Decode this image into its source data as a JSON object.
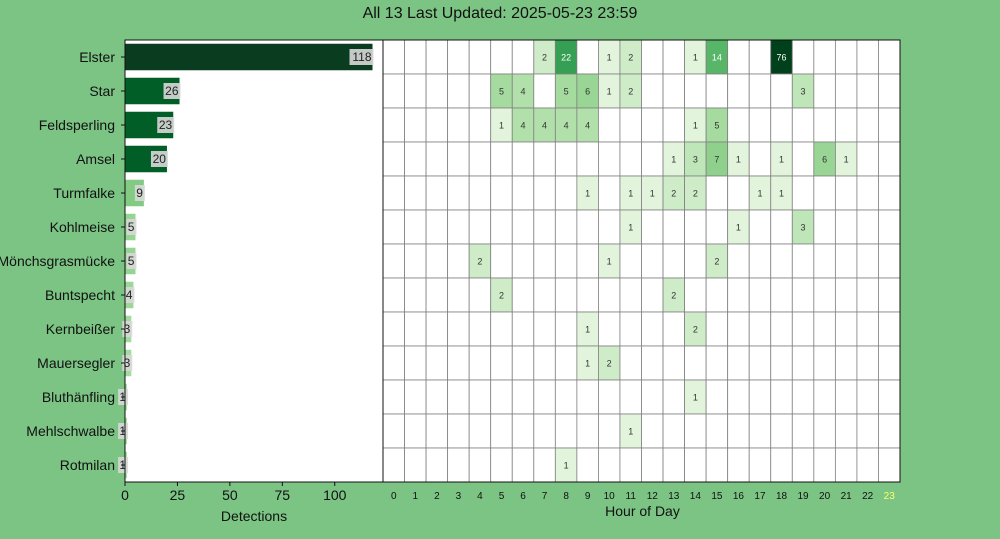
{
  "title": "All 13 Last Updated: 2025-05-23 23:59",
  "colors": {
    "background": "#7bc484",
    "grid": "#808080",
    "current_hour_highlight": "#ffff66"
  },
  "chart_data": [
    {
      "type": "bar",
      "orientation": "horizontal",
      "categories": [
        "Elster",
        "Star",
        "Feldsperling",
        "Amsel",
        "Turmfalke",
        "Kohlmeise",
        "Mönchsgrasmücke",
        "Buntspecht",
        "Kernbeißer",
        "Mauersegler",
        "Bluthänfling",
        "Mehlschwalbe",
        "Rotmilan"
      ],
      "values": [
        118,
        26,
        23,
        20,
        9,
        5,
        5,
        4,
        3,
        3,
        1,
        1,
        1
      ],
      "xlabel": "Detections",
      "xticks": [
        0,
        25,
        50,
        75,
        100
      ],
      "xlim": [
        0,
        123
      ]
    },
    {
      "type": "heatmap",
      "xlabel": "Hour of Day",
      "x": [
        "0",
        "1",
        "2",
        "3",
        "4",
        "5",
        "6",
        "7",
        "8",
        "9",
        "10",
        "11",
        "12",
        "13",
        "14",
        "15",
        "16",
        "17",
        "18",
        "19",
        "20",
        "21",
        "22",
        "23"
      ],
      "highlighted_x": "23",
      "rows": [
        "Elster",
        "Star",
        "Feldsperling",
        "Amsel",
        "Turmfalke",
        "Kohlmeise",
        "Mönchsgrasmücke",
        "Buntspecht",
        "Kernbeißer",
        "Mauersegler",
        "Bluthänfling",
        "Mehlschwalbe",
        "Rotmilan"
      ],
      "values": [
        [
          0,
          0,
          0,
          0,
          0,
          0,
          0,
          2,
          22,
          0,
          1,
          2,
          0,
          0,
          1,
          14,
          0,
          0,
          76,
          0,
          0,
          0,
          0,
          0
        ],
        [
          0,
          0,
          0,
          0,
          0,
          5,
          4,
          0,
          5,
          6,
          1,
          2,
          0,
          0,
          0,
          0,
          0,
          0,
          0,
          3,
          0,
          0,
          0,
          0
        ],
        [
          0,
          0,
          0,
          0,
          0,
          1,
          4,
          4,
          4,
          4,
          0,
          0,
          0,
          0,
          1,
          5,
          0,
          0,
          0,
          0,
          0,
          0,
          0,
          0
        ],
        [
          0,
          0,
          0,
          0,
          0,
          0,
          0,
          0,
          0,
          0,
          0,
          0,
          0,
          1,
          3,
          7,
          1,
          0,
          1,
          0,
          6,
          1,
          0,
          0
        ],
        [
          0,
          0,
          0,
          0,
          0,
          0,
          0,
          0,
          0,
          1,
          0,
          1,
          1,
          2,
          2,
          0,
          0,
          1,
          1,
          0,
          0,
          0,
          0,
          0
        ],
        [
          0,
          0,
          0,
          0,
          0,
          0,
          0,
          0,
          0,
          0,
          0,
          1,
          0,
          0,
          0,
          0,
          1,
          0,
          0,
          3,
          0,
          0,
          0,
          0
        ],
        [
          0,
          0,
          0,
          0,
          2,
          0,
          0,
          0,
          0,
          0,
          1,
          0,
          0,
          0,
          0,
          2,
          0,
          0,
          0,
          0,
          0,
          0,
          0,
          0
        ],
        [
          0,
          0,
          0,
          0,
          0,
          2,
          0,
          0,
          0,
          0,
          0,
          0,
          0,
          2,
          0,
          0,
          0,
          0,
          0,
          0,
          0,
          0,
          0,
          0
        ],
        [
          0,
          0,
          0,
          0,
          0,
          0,
          0,
          0,
          0,
          1,
          0,
          0,
          0,
          0,
          2,
          0,
          0,
          0,
          0,
          0,
          0,
          0,
          0,
          0
        ],
        [
          0,
          0,
          0,
          0,
          0,
          0,
          0,
          0,
          0,
          1,
          2,
          0,
          0,
          0,
          0,
          0,
          0,
          0,
          0,
          0,
          0,
          0,
          0,
          0
        ],
        [
          0,
          0,
          0,
          0,
          0,
          0,
          0,
          0,
          0,
          0,
          0,
          0,
          0,
          0,
          1,
          0,
          0,
          0,
          0,
          0,
          0,
          0,
          0,
          0
        ],
        [
          0,
          0,
          0,
          0,
          0,
          0,
          0,
          0,
          0,
          0,
          0,
          1,
          0,
          0,
          0,
          0,
          0,
          0,
          0,
          0,
          0,
          0,
          0,
          0
        ],
        [
          0,
          0,
          0,
          0,
          0,
          0,
          0,
          0,
          1,
          0,
          0,
          0,
          0,
          0,
          0,
          0,
          0,
          0,
          0,
          0,
          0,
          0,
          0,
          0
        ]
      ]
    }
  ]
}
